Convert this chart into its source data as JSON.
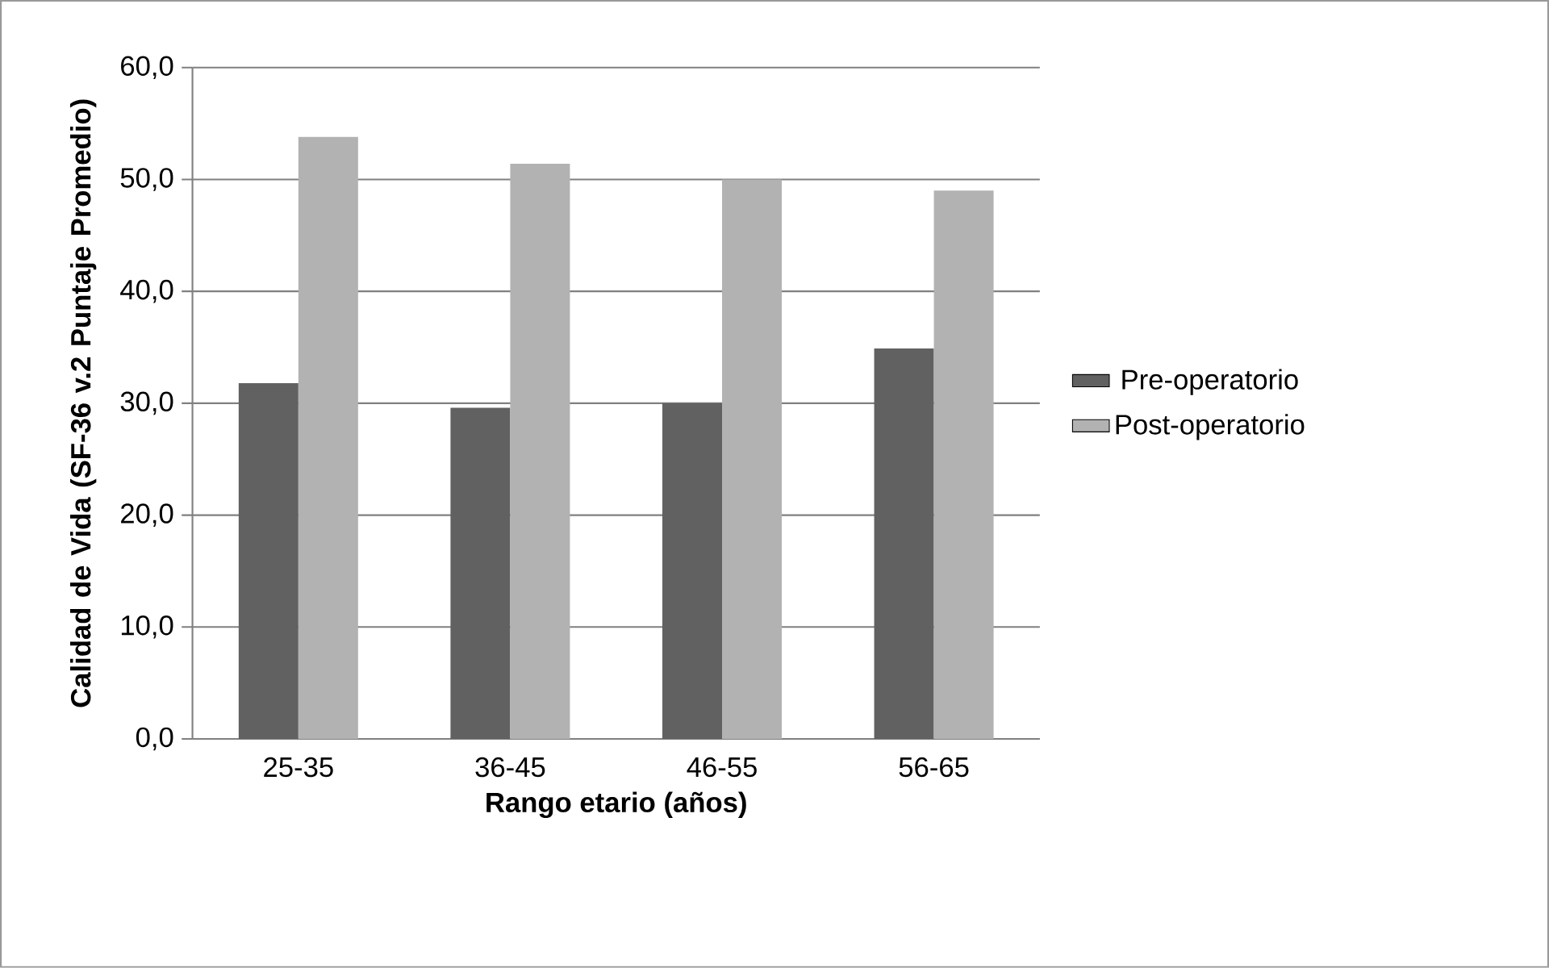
{
  "chart_data": {
    "type": "bar",
    "xlabel": "Rango etario (años)",
    "ylabel": "Calidad de Vida (SF-36 v.2 Puntaje Promedio)",
    "categories": [
      "25-35",
      "36-45",
      "46-55",
      "56-65"
    ],
    "series": [
      {
        "name": "Pre-operatorio",
        "color": "#616161",
        "values": [
          31.8,
          29.6,
          30.0,
          34.9
        ]
      },
      {
        "name": "Post-operatorio",
        "color": "#b2b2b2",
        "values": [
          53.8,
          51.4,
          50.0,
          49.0
        ]
      }
    ],
    "ylim": [
      0,
      60
    ],
    "yticks": [
      {
        "value": 0,
        "label": "0,0"
      },
      {
        "value": 10,
        "label": "10,0"
      },
      {
        "value": 20,
        "label": "20,0"
      },
      {
        "value": 30,
        "label": "30,0"
      },
      {
        "value": 40,
        "label": "40,0"
      },
      {
        "value": 50,
        "label": "50,0"
      },
      {
        "value": 60,
        "label": "60,0"
      }
    ],
    "grid": "y",
    "legend": "right"
  }
}
